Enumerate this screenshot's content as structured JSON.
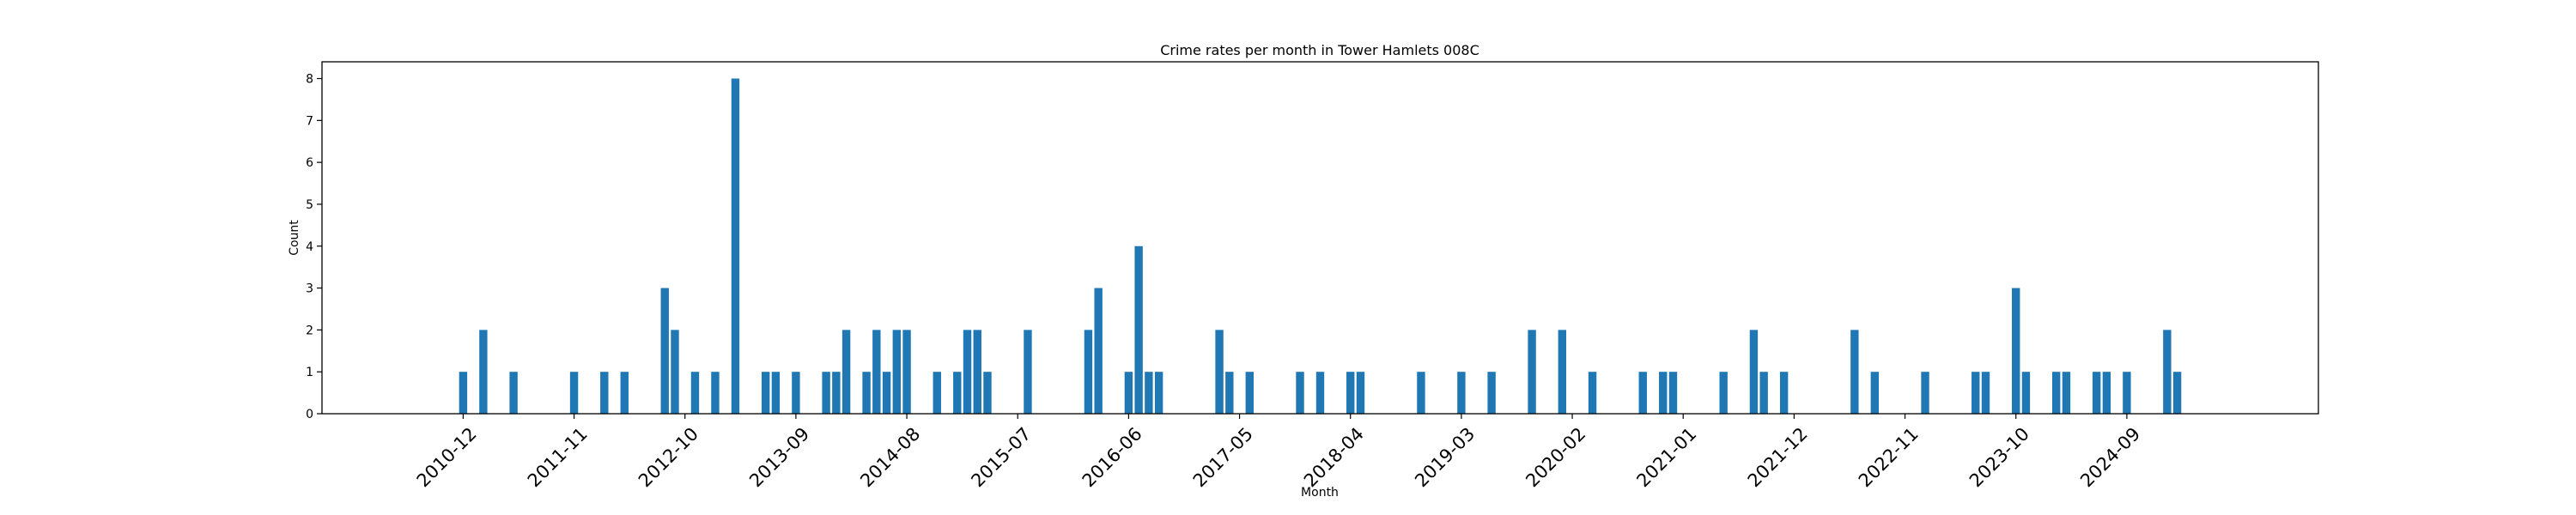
{
  "chart_data": {
    "type": "bar",
    "title": "Crime rates per month in Tower Hamlets 008C",
    "xlabel": "Month",
    "ylabel": "Count",
    "ylim": [
      0,
      8.4
    ],
    "xlim": [
      "2009-10",
      "2026-04"
    ],
    "yticks": [
      0,
      1,
      2,
      3,
      4,
      5,
      6,
      7,
      8
    ],
    "xtick_labels": [
      "2010-12",
      "2011-11",
      "2012-10",
      "2013-09",
      "2014-08",
      "2015-07",
      "2016-06",
      "2017-05",
      "2018-04",
      "2019-03",
      "2020-02",
      "2021-01",
      "2021-12",
      "2022-11",
      "2023-10",
      "2024-09"
    ],
    "grid": false,
    "bar_color": "#1f77b4",
    "data": [
      [
        "2010-12",
        1
      ],
      [
        "2011-02",
        2
      ],
      [
        "2011-05",
        1
      ],
      [
        "2011-11",
        1
      ],
      [
        "2012-02",
        1
      ],
      [
        "2012-04",
        1
      ],
      [
        "2012-08",
        3
      ],
      [
        "2012-09",
        2
      ],
      [
        "2012-11",
        1
      ],
      [
        "2013-01",
        1
      ],
      [
        "2013-03",
        8
      ],
      [
        "2013-06",
        1
      ],
      [
        "2013-07",
        1
      ],
      [
        "2013-09",
        1
      ],
      [
        "2013-12",
        1
      ],
      [
        "2014-01",
        1
      ],
      [
        "2014-02",
        2
      ],
      [
        "2014-04",
        1
      ],
      [
        "2014-05",
        2
      ],
      [
        "2014-06",
        1
      ],
      [
        "2014-07",
        2
      ],
      [
        "2014-08",
        2
      ],
      [
        "2014-11",
        1
      ],
      [
        "2015-01",
        1
      ],
      [
        "2015-02",
        2
      ],
      [
        "2015-03",
        2
      ],
      [
        "2015-04",
        1
      ],
      [
        "2015-08",
        2
      ],
      [
        "2016-02",
        2
      ],
      [
        "2016-03",
        3
      ],
      [
        "2016-06",
        1
      ],
      [
        "2016-07",
        4
      ],
      [
        "2016-08",
        1
      ],
      [
        "2016-09",
        1
      ],
      [
        "2017-03",
        2
      ],
      [
        "2017-04",
        1
      ],
      [
        "2017-06",
        1
      ],
      [
        "2017-11",
        1
      ],
      [
        "2018-01",
        1
      ],
      [
        "2018-04",
        1
      ],
      [
        "2018-05",
        1
      ],
      [
        "2018-11",
        1
      ],
      [
        "2019-03",
        1
      ],
      [
        "2019-06",
        1
      ],
      [
        "2019-10",
        2
      ],
      [
        "2020-01",
        2
      ],
      [
        "2020-04",
        1
      ],
      [
        "2020-09",
        1
      ],
      [
        "2020-11",
        1
      ],
      [
        "2020-12",
        1
      ],
      [
        "2021-05",
        1
      ],
      [
        "2021-08",
        2
      ],
      [
        "2021-09",
        1
      ],
      [
        "2021-11",
        1
      ],
      [
        "2022-06",
        2
      ],
      [
        "2022-08",
        1
      ],
      [
        "2023-01",
        1
      ],
      [
        "2023-06",
        1
      ],
      [
        "2023-07",
        1
      ],
      [
        "2023-10",
        3
      ],
      [
        "2023-11",
        1
      ],
      [
        "2024-02",
        1
      ],
      [
        "2024-03",
        1
      ],
      [
        "2024-06",
        1
      ],
      [
        "2024-07",
        1
      ],
      [
        "2024-09",
        1
      ],
      [
        "2025-01",
        2
      ],
      [
        "2025-02",
        1
      ]
    ]
  }
}
